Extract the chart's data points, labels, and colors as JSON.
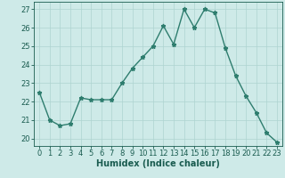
{
  "x": [
    0,
    1,
    2,
    3,
    4,
    5,
    6,
    7,
    8,
    9,
    10,
    11,
    12,
    13,
    14,
    15,
    16,
    17,
    18,
    19,
    20,
    21,
    22,
    23
  ],
  "y": [
    22.5,
    21.0,
    20.7,
    20.8,
    22.2,
    22.1,
    22.1,
    22.1,
    23.0,
    23.8,
    24.4,
    25.0,
    26.1,
    25.1,
    27.0,
    26.0,
    27.0,
    26.8,
    24.9,
    23.4,
    22.3,
    21.4,
    20.3,
    19.8
  ],
  "xlabel": "Humidex (Indice chaleur)",
  "ylim_min": 19.6,
  "ylim_max": 27.4,
  "yticks": [
    20,
    21,
    22,
    23,
    24,
    25,
    26,
    27
  ],
  "xticks": [
    0,
    1,
    2,
    3,
    4,
    5,
    6,
    7,
    8,
    9,
    10,
    11,
    12,
    13,
    14,
    15,
    16,
    17,
    18,
    19,
    20,
    21,
    22,
    23
  ],
  "line_color": "#2e7d6e",
  "marker": "*",
  "markersize": 3.5,
  "linewidth": 1.0,
  "bg_color": "#ceeae8",
  "grid_color": "#aed4d0",
  "label_color": "#1a5c50",
  "tick_color": "#1a5c50",
  "spine_color": "#1a5c50",
  "xlabel_fontsize": 7.0,
  "tick_fontsize": 6.0
}
